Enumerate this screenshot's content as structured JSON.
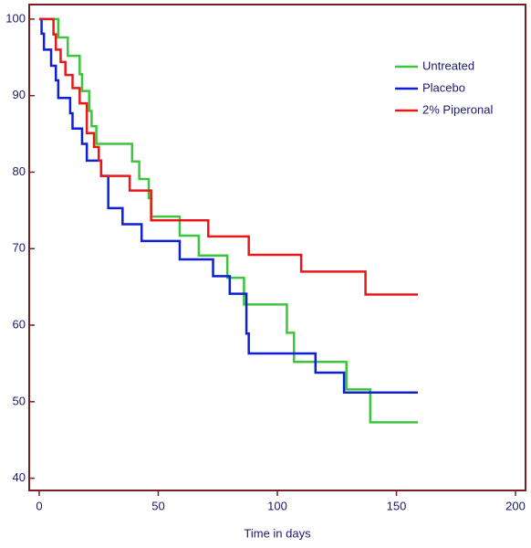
{
  "chart_data": {
    "type": "line",
    "step": "post",
    "xlabel": "Time in days",
    "xlim": [
      -4.2,
      204.2
    ],
    "xticks": [
      0,
      50,
      100,
      150,
      200
    ],
    "ylim": [
      38.4,
      101.9
    ],
    "yticks": [
      40,
      50,
      60,
      70,
      80,
      90,
      100
    ],
    "legend": "upper right",
    "series": [
      {
        "name": "Untreated",
        "color": "#3cc63c",
        "x": [
          0,
          8,
          12,
          17,
          18,
          21,
          22,
          24,
          39,
          42,
          46,
          47,
          59,
          67,
          79,
          86,
          104,
          107,
          129,
          139,
          159
        ],
        "values": [
          100,
          97.6,
          95.2,
          92.8,
          90.6,
          88,
          86,
          83.7,
          81.4,
          79.1,
          76.6,
          74.2,
          71.7,
          69.1,
          66.2,
          62.7,
          59,
          55.2,
          51.6,
          47.3,
          47.3
        ]
      },
      {
        "name": "Placebo",
        "color": "#0f1fd6",
        "x": [
          0,
          1,
          2,
          5,
          7,
          8,
          13,
          14,
          18,
          20,
          26,
          29,
          35,
          43,
          59,
          73,
          80,
          87,
          88,
          116,
          128,
          159
        ],
        "values": [
          100,
          98.1,
          96,
          93.9,
          92,
          89.7,
          87.7,
          85.7,
          83.7,
          81.5,
          79.5,
          75.3,
          73.2,
          71,
          68.6,
          66.4,
          64.1,
          58.9,
          56.3,
          53.8,
          51.2,
          51.2
        ]
      },
      {
        "name": "2% Piperonal",
        "color": "#e81818",
        "x": [
          0,
          6,
          7,
          9,
          11,
          14,
          17,
          20,
          23,
          25,
          26,
          38,
          47,
          71,
          88,
          110,
          137,
          159
        ],
        "values": [
          100,
          98,
          96,
          94.4,
          92.7,
          91,
          89,
          85.1,
          83.3,
          81.5,
          79.5,
          77.6,
          73.7,
          71.6,
          69.2,
          67,
          64,
          64
        ]
      }
    ]
  }
}
